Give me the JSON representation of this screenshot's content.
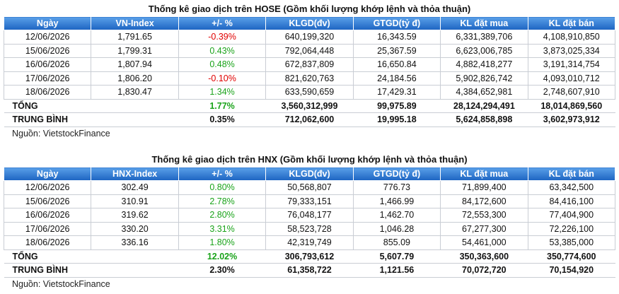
{
  "tables": [
    {
      "title": "Thống kê giao dịch trên HOSE (Gồm khối lượng khớp lệnh và thỏa thuận)",
      "headers": [
        "Ngày",
        "VN-Index",
        "+/- %",
        "KLGD(đv)",
        "GTGD(tỷ đ)",
        "KL đặt mua",
        "KL đặt bán"
      ],
      "rows": [
        [
          "12/06/2026",
          "1,791.65",
          "-0.39%",
          "640,199,320",
          "16,343.59",
          "6,331,389,706",
          "4,108,910,850"
        ],
        [
          "15/06/2026",
          "1,799.31",
          "0.43%",
          "792,064,448",
          "25,367.59",
          "6,623,006,785",
          "3,873,025,334"
        ],
        [
          "16/06/2026",
          "1,807.94",
          "0.48%",
          "672,837,809",
          "16,650.84",
          "4,882,418,277",
          "3,191,314,754"
        ],
        [
          "17/06/2026",
          "1,806.20",
          "-0.10%",
          "821,620,763",
          "24,184.56",
          "5,902,826,742",
          "4,093,010,712"
        ],
        [
          "18/06/2026",
          "1,830.47",
          "1.34%",
          "633,590,659",
          "17,429.31",
          "4,384,652,981",
          "2,748,607,910"
        ]
      ],
      "total": [
        "TỔNG",
        null,
        "1.77%",
        "3,560,312,999",
        "99,975.89",
        "28,124,294,491",
        "18,014,869,560"
      ],
      "average": [
        "TRUNG BÌNH",
        null,
        "0.35%",
        "712,062,600",
        "19,995.18",
        "5,624,858,898",
        "3,602,973,912"
      ],
      "source": "Nguồn: VietstockFinance"
    },
    {
      "title": "Thống kê giao dịch trên HNX (Gồm khối lượng khớp lệnh và thỏa thuận)",
      "headers": [
        "Ngày",
        "HNX-Index",
        "+/- %",
        "KLGD(đv)",
        "GTGD(tỷ đ)",
        "KL đặt mua",
        "KL đặt bán"
      ],
      "rows": [
        [
          "12/06/2026",
          "302.49",
          "0.80%",
          "50,568,807",
          "776.73",
          "71,899,400",
          "63,342,500"
        ],
        [
          "15/06/2026",
          "310.91",
          "2.78%",
          "79,333,151",
          "1,466.99",
          "84,172,600",
          "84,416,100"
        ],
        [
          "16/06/2026",
          "319.62",
          "2.80%",
          "76,048,177",
          "1,462.70",
          "72,553,300",
          "77,404,900"
        ],
        [
          "17/06/2026",
          "330.20",
          "3.31%",
          "58,523,728",
          "1,046.28",
          "67,277,300",
          "72,226,100"
        ],
        [
          "18/06/2026",
          "336.16",
          "1.80%",
          "42,319,749",
          "855.09",
          "54,461,000",
          "53,385,000"
        ]
      ],
      "total": [
        "TỔNG",
        null,
        "12.02%",
        "306,793,612",
        "5,607.79",
        "350,363,600",
        "350,774,600"
      ],
      "average": [
        "TRUNG BÌNH",
        null,
        "2.30%",
        "61,358,722",
        "1,121.56",
        "70,072,720",
        "70,154,920"
      ],
      "source": "Nguồn: VietstockFinance"
    }
  ]
}
